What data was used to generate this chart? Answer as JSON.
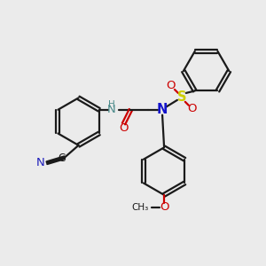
{
  "bg_color": "#ebebeb",
  "bond_color": "#1a1a1a",
  "bond_width": 1.6,
  "atom_colors": {
    "N": "#1414cc",
    "O": "#cc0000",
    "S": "#cccc00",
    "NH": "#4a8a8a",
    "H": "#4a8a8a",
    "CN_C": "#1a1a1a",
    "CN_N": "#2020bb"
  },
  "font_size": 8.5,
  "fig_size": [
    3.0,
    3.0
  ],
  "dpi": 100
}
